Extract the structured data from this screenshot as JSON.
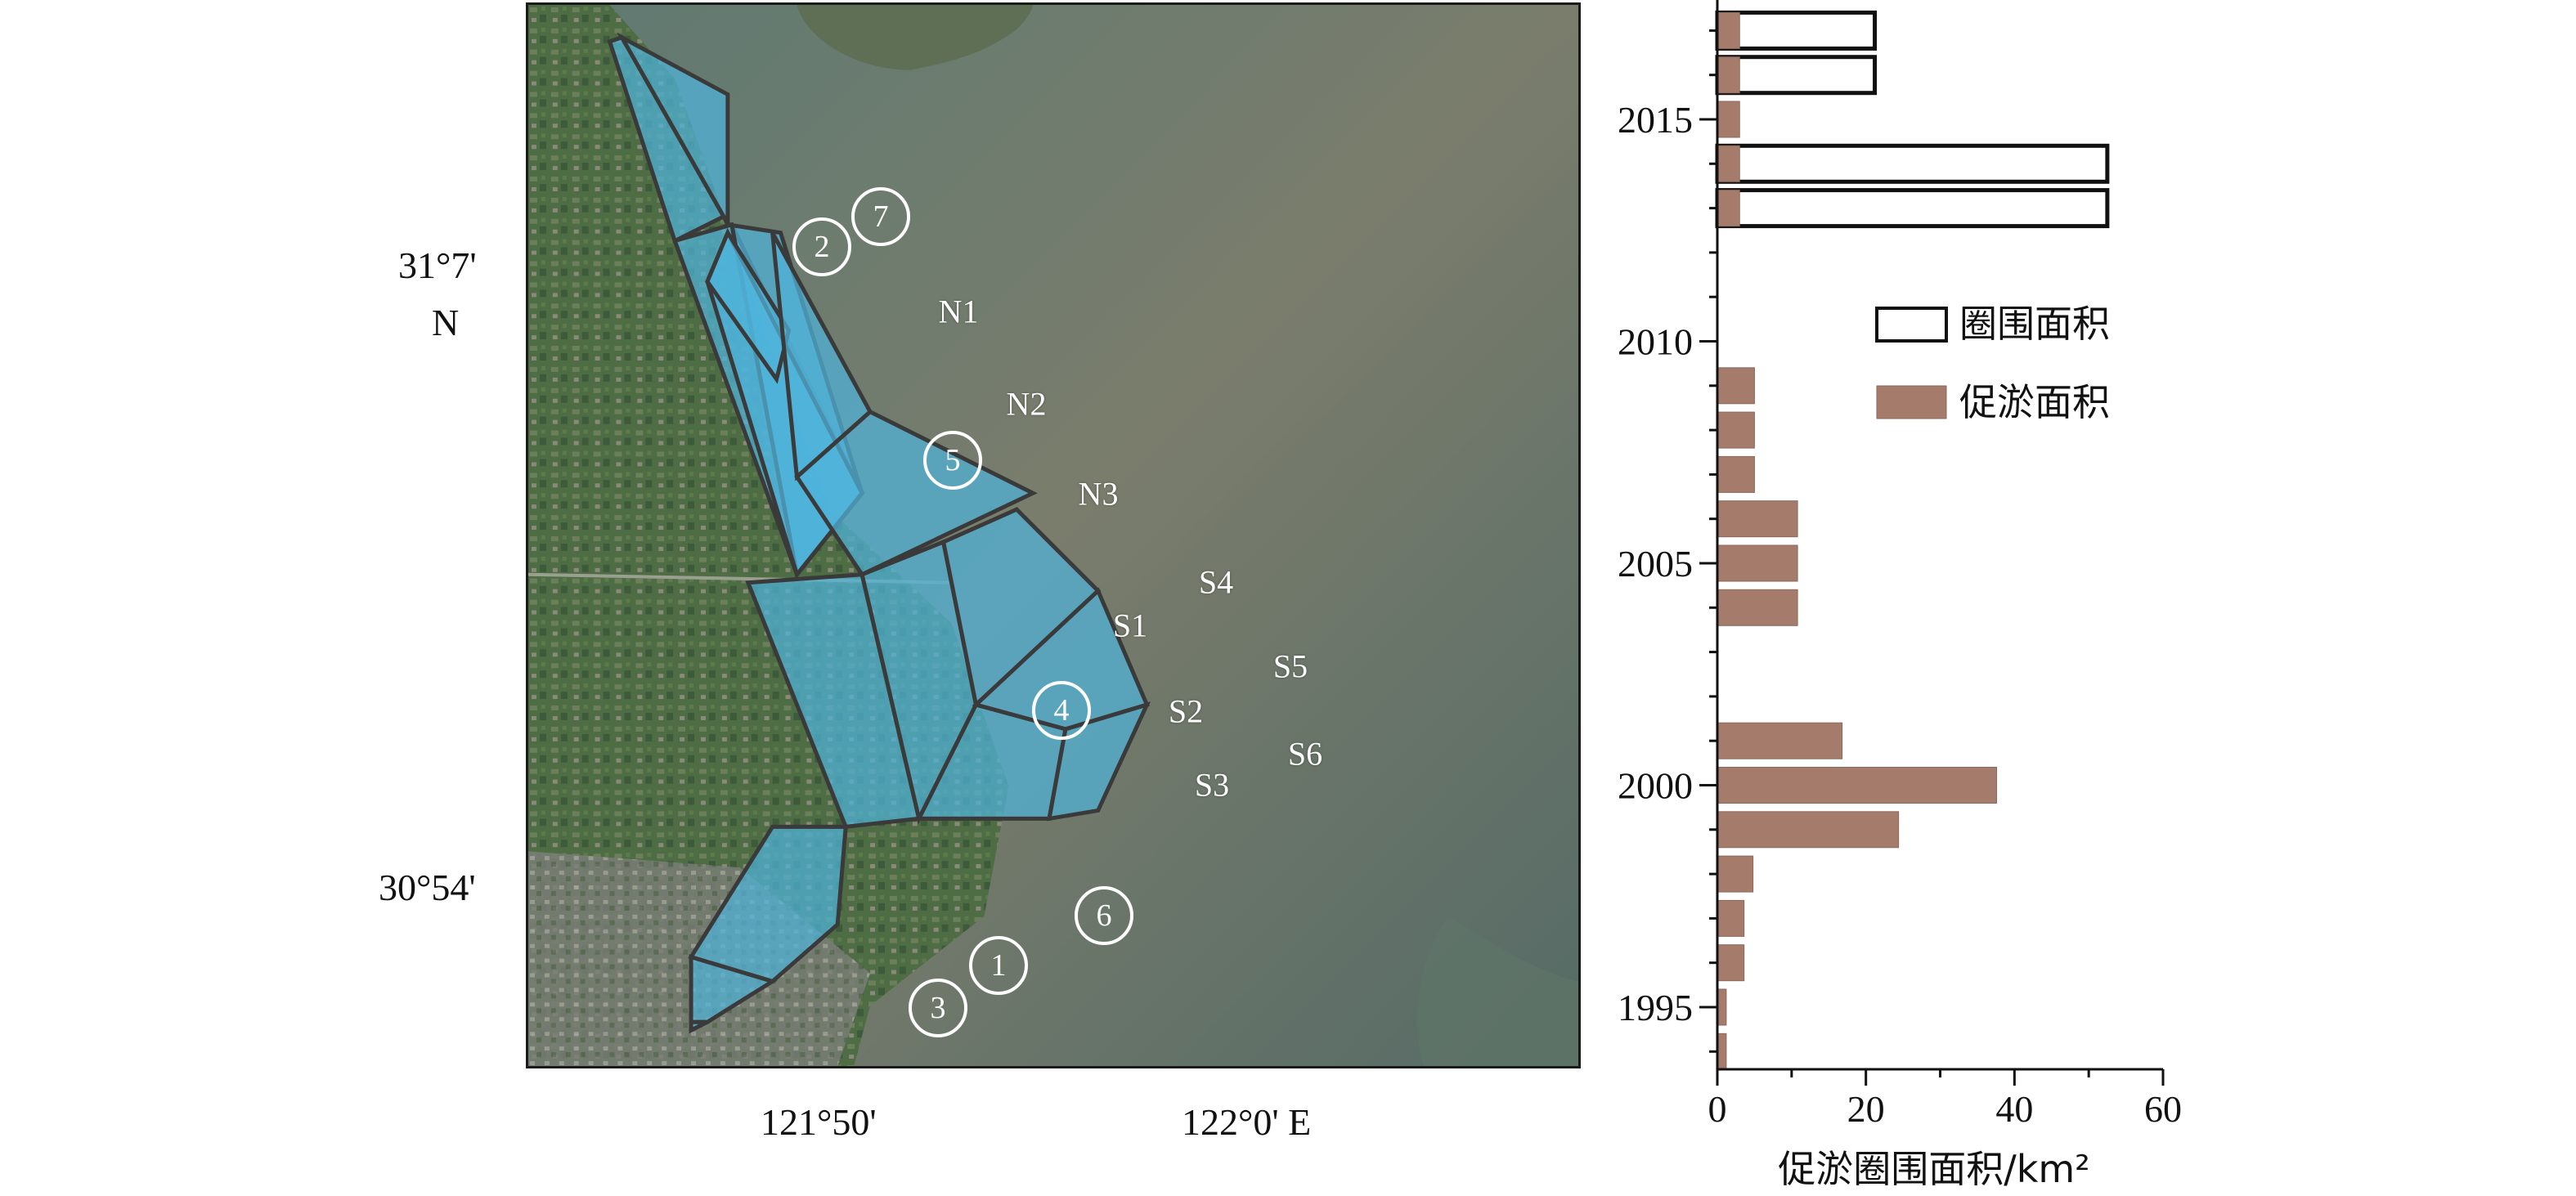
{
  "map": {
    "lat_ticks": [
      "31°7'",
      "N",
      "30°54'"
    ],
    "lon_ticks": [
      "121°50'",
      "122°0' E"
    ],
    "zones": [
      "N1",
      "N2",
      "N3",
      "S1",
      "S2",
      "S3",
      "S4",
      "S5",
      "S6"
    ],
    "circled": [
      "1",
      "2",
      "3",
      "4",
      "5",
      "6",
      "7"
    ],
    "colors": {
      "zone_fill": "#4fb3d9",
      "land": "#4e6d45",
      "sea": "#6b7b6c",
      "outline": "#3a3a3a"
    }
  },
  "chart_data": {
    "type": "bar",
    "orientation": "horizontal",
    "categories": [
      1994,
      1995,
      1996,
      1997,
      1998,
      1999,
      2000,
      2001,
      2002,
      2003,
      2004,
      2005,
      2006,
      2007,
      2008,
      2009,
      2010,
      2011,
      2012,
      2013,
      2014,
      2015,
      2016,
      2017
    ],
    "series": [
      {
        "name": "促淤面积",
        "color": "#a57c6c",
        "values": [
          1.2,
          1.2,
          3.6,
          3.6,
          4.8,
          24.4,
          37.6,
          16.8,
          0,
          0,
          10.8,
          10.8,
          10.8,
          5,
          5,
          5,
          0,
          0,
          0,
          3,
          3,
          3,
          3,
          3
        ]
      },
      {
        "name": "圈围面积",
        "color": "none",
        "values": [
          0,
          0,
          0,
          0,
          0,
          0,
          0,
          0,
          0,
          0,
          0,
          0,
          0,
          0,
          0,
          0,
          0,
          0,
          0,
          52.5,
          52.5,
          0,
          21.2,
          21.2
        ]
      }
    ],
    "y_ticks": [
      "1995",
      "2000",
      "2005",
      "2010",
      "2015"
    ],
    "x_ticks": [
      "0",
      "20",
      "40",
      "60"
    ],
    "xlim": [
      0,
      60
    ],
    "ylim": [
      1993.4,
      2017.6
    ],
    "xlabel": "促淤圈围面积/km²",
    "legend_position": "center-right",
    "grid": false
  }
}
